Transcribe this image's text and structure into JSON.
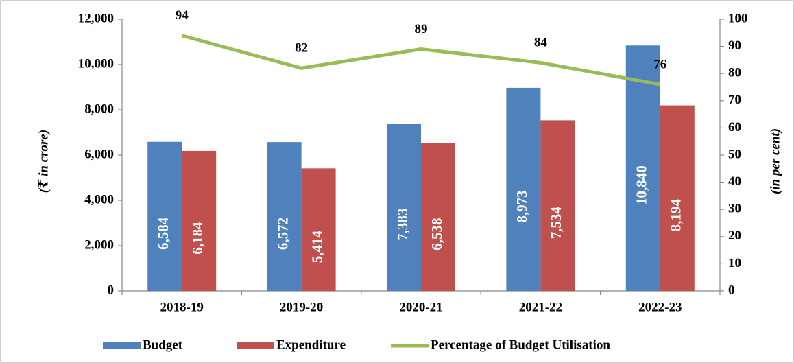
{
  "chart_data": {
    "type": "bar",
    "categories": [
      "2018-19",
      "2019-20",
      "2020-21",
      "2021-22",
      "2022-23"
    ],
    "series": [
      {
        "name": "Budget",
        "color": "#4f81bd",
        "values": [
          6584,
          6572,
          7383,
          8973,
          10840
        ],
        "value_labels": [
          "6,584",
          "6,572",
          "7,383",
          "8,973",
          "10,840"
        ]
      },
      {
        "name": "Expenditure",
        "color": "#c0504d",
        "values": [
          6184,
          5414,
          6538,
          7534,
          8194
        ],
        "value_labels": [
          "6,184",
          "5,414",
          "6,538",
          "7,534",
          "8,194"
        ]
      },
      {
        "name": "Percentage of Budget Utilisation",
        "type": "line",
        "axis": "y2",
        "color": "#9bbb59",
        "values": [
          94,
          82,
          89,
          84,
          76
        ]
      }
    ],
    "ylabel": "(₹ in crore)",
    "y2label": "(in per cent)",
    "ylim": [
      0,
      12000
    ],
    "yticks": [
      0,
      {
        "value": 2000,
        "label": "2,000"
      },
      {
        "value": 4000,
        "label": "4,000"
      },
      {
        "value": 6000,
        "label": "6,000"
      },
      {
        "value": 8000,
        "label": "8,000"
      },
      {
        "value": 10000,
        "label": "10,000"
      },
      {
        "value": 12000,
        "label": "12,000"
      }
    ],
    "y2lim": [
      0,
      100
    ],
    "y2ticks": [
      0,
      10,
      20,
      30,
      40,
      50,
      60,
      70,
      80,
      90,
      100
    ],
    "legend": "bottom"
  }
}
